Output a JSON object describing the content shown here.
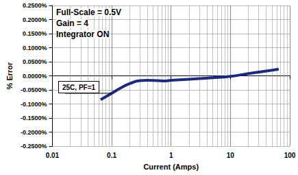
{
  "chart_data": {
    "type": "line",
    "annotations": [
      "Full-Scale = 0.5V",
      "Gain = 4",
      "Integrator ON"
    ],
    "x_label": "Current (Amps)",
    "y_label": "% Error",
    "log": "x",
    "grid": true,
    "x": [
      0.065,
      0.1,
      0.15,
      0.2,
      0.3,
      0.4,
      0.6,
      0.8,
      1,
      2,
      5,
      10,
      20,
      40,
      65
    ],
    "series": [
      {
        "name": "25C, PF=1",
        "color": "#1b2a7a",
        "values": [
          -0.085,
          -0.062,
          -0.04,
          -0.028,
          -0.017,
          -0.016,
          -0.017,
          -0.018,
          -0.016,
          -0.012,
          -0.007,
          -0.002,
          0.008,
          0.017,
          0.024
        ]
      }
    ],
    "xlim": [
      0.01,
      100
    ],
    "xticks": [
      0.01,
      0.1,
      1,
      10,
      100
    ],
    "ylim": [
      -0.25,
      0.25
    ],
    "yticks": [
      {
        "value": -0.25,
        "label": "-0.2500%"
      },
      {
        "value": -0.2,
        "label": "-0.2000%"
      },
      {
        "value": -0.15,
        "label": "-0.1500%"
      },
      {
        "value": -0.1,
        "label": "-0.1000%"
      },
      {
        "value": -0.05,
        "label": "-0.0500%"
      },
      {
        "value": 0,
        "label": "0.0000%"
      },
      {
        "value": 0.05,
        "label": "0.0500%"
      },
      {
        "value": 0.1,
        "label": "0.1000%"
      },
      {
        "value": 0.15,
        "label": "0.1500%"
      },
      {
        "value": 0.2,
        "label": "0.2000%"
      },
      {
        "value": 0.25,
        "label": "0.2500%"
      }
    ]
  }
}
